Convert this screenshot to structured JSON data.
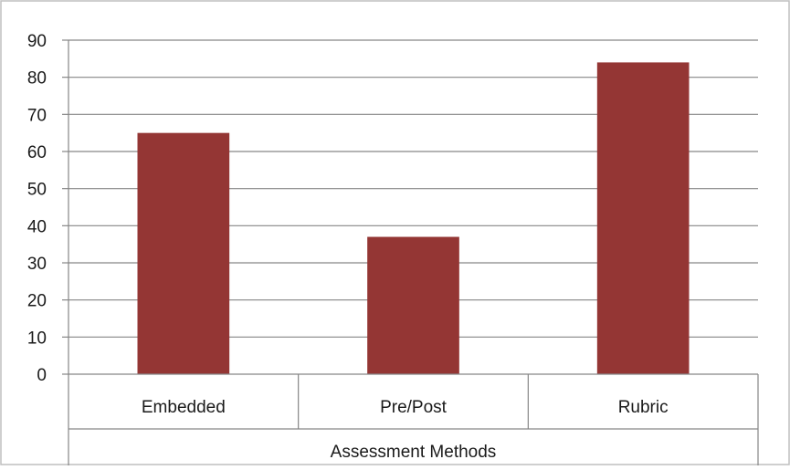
{
  "chart_data": {
    "type": "bar",
    "categories": [
      "Embedded",
      "Pre/Post",
      "Rubric"
    ],
    "values": [
      65,
      37,
      84
    ],
    "title": "",
    "xlabel": "Assessment Methods",
    "ylabel": "",
    "ylim": [
      0,
      90
    ],
    "yticks": [
      0,
      10,
      20,
      30,
      40,
      50,
      60,
      70,
      80,
      90
    ],
    "grid": true,
    "legend": "none",
    "bar_color": "#943634",
    "grid_color": "#868686",
    "axis_color": "#868686"
  }
}
